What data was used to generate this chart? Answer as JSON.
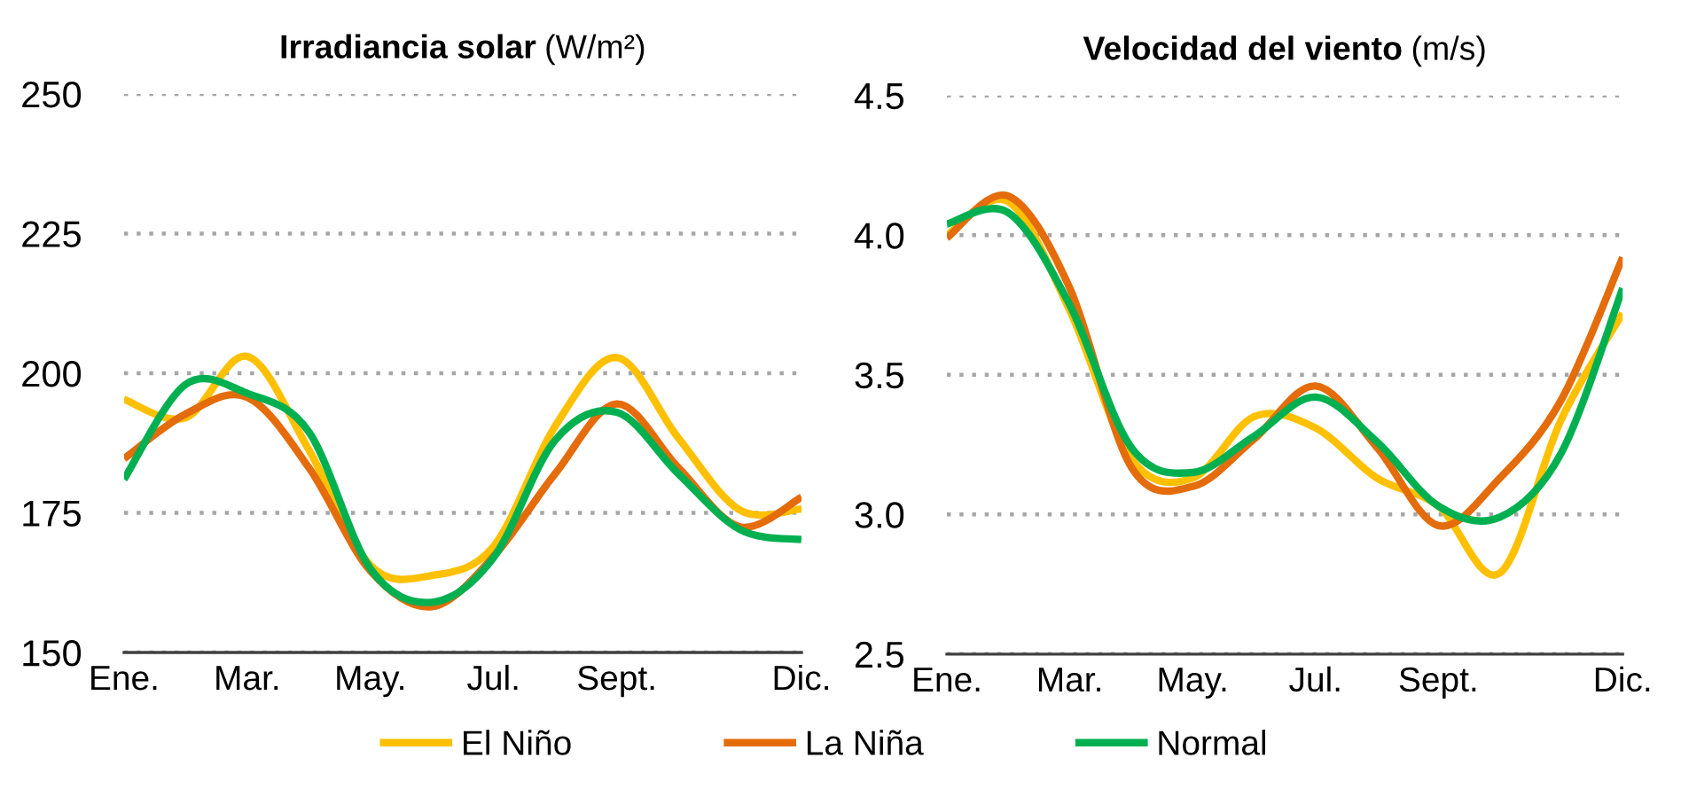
{
  "chart_data": [
    {
      "type": "line",
      "title": "Irradiancia solar",
      "ylabel": "(W/m²)",
      "categories": [
        "Ene.",
        null,
        "Mar.",
        null,
        "May.",
        null,
        "Jul.",
        null,
        "Sept.",
        null,
        null,
        "Dic."
      ],
      "series": [
        {
          "name": "El Niño",
          "color": "#ffc000",
          "values": [
            195.3,
            192,
            203,
            186.3,
            165.6,
            163.8,
            169,
            190.5,
            202.8,
            188.4,
            175.5,
            175.7
          ]
        },
        {
          "name": "La Niña",
          "color": "#e46c0a",
          "values": [
            184.7,
            192.7,
            195.7,
            183.1,
            164.6,
            158.2,
            167.2,
            182,
            194.5,
            183.1,
            172.5,
            177.8
          ]
        },
        {
          "name": "Normal",
          "color": "#00b050",
          "values": [
            181,
            198,
            196.4,
            189.5,
            165,
            159,
            167,
            188,
            193,
            182,
            172,
            170.2
          ]
        }
      ],
      "ylim": [
        150,
        250
      ],
      "yticks": [
        150,
        175,
        200,
        225,
        250
      ],
      "grid": "y",
      "legend": "bottom"
    },
    {
      "type": "line",
      "title": "Velocidad del viento",
      "ylabel": "(m/s)",
      "categories": [
        "Ene.",
        null,
        "Mar.",
        null,
        "May.",
        null,
        "Jul.",
        null,
        "Sept.",
        null,
        null,
        "Dic."
      ],
      "series": [
        {
          "name": "El Niño",
          "color": "#ffc000",
          "values": [
            4.0,
            4.12,
            3.73,
            3.2,
            3.13,
            3.35,
            3.31,
            3.13,
            3.03,
            2.79,
            3.34,
            3.72
          ]
        },
        {
          "name": "La Niña",
          "color": "#e46c0a",
          "values": [
            3.99,
            4.14,
            3.81,
            3.17,
            3.1,
            3.27,
            3.46,
            3.24,
            2.96,
            3.13,
            3.41,
            3.92
          ]
        },
        {
          "name": "Normal",
          "color": "#00b050",
          "values": [
            4.04,
            4.08,
            3.75,
            3.24,
            3.15,
            3.28,
            3.42,
            3.26,
            3.03,
            2.99,
            3.22,
            3.81
          ]
        }
      ],
      "ylim": [
        2.5,
        4.5
      ],
      "yticks": [
        2.5,
        {
          "value": 3,
          "label": "3.0"
        },
        3.5,
        {
          "value": 4,
          "label": "4.0"
        },
        4.5
      ],
      "grid": "y",
      "legend": "bottom"
    }
  ]
}
